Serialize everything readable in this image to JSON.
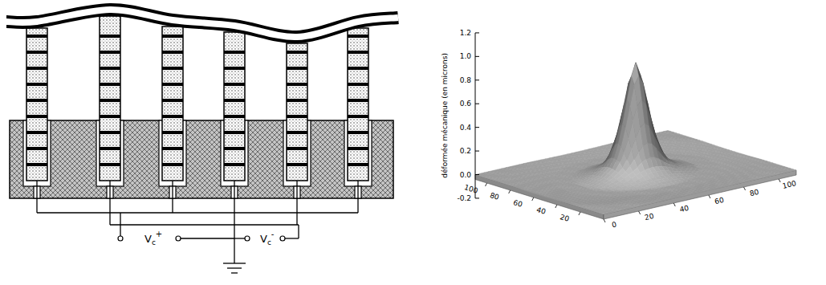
{
  "diagram": {
    "terminals": [
      {
        "base": "V",
        "sub": "c",
        "sup": "+"
      },
      {
        "base": "V",
        "sub": "c",
        "sup": "-"
      }
    ]
  },
  "chart_data": {
    "type": "surface",
    "zlabel": "déformée mécanique (en microns)",
    "xlim": [
      0,
      110
    ],
    "ylim": [
      0,
      110
    ],
    "zlim": [
      -0.2,
      1.2
    ],
    "xticks": [
      0,
      20,
      40,
      60,
      80,
      100
    ],
    "yticks": [
      20,
      40,
      60,
      80,
      100
    ],
    "zticks": [
      -0.2,
      {
        "value": 0,
        "label": "0.0"
      },
      0.2,
      0.4,
      0.6,
      0.8,
      {
        "value": 1,
        "label": "1.0"
      },
      1.2
    ],
    "center": [
      55,
      55
    ],
    "radial_profile": {
      "r": [
        0,
        3,
        6,
        9,
        12,
        15,
        20,
        25,
        30,
        40,
        50,
        60,
        80
      ],
      "z": [
        0.93,
        0.8,
        0.55,
        0.33,
        0.18,
        0.09,
        0.03,
        0,
        -0.02,
        -0.02,
        -0.01,
        0,
        0
      ]
    }
  }
}
